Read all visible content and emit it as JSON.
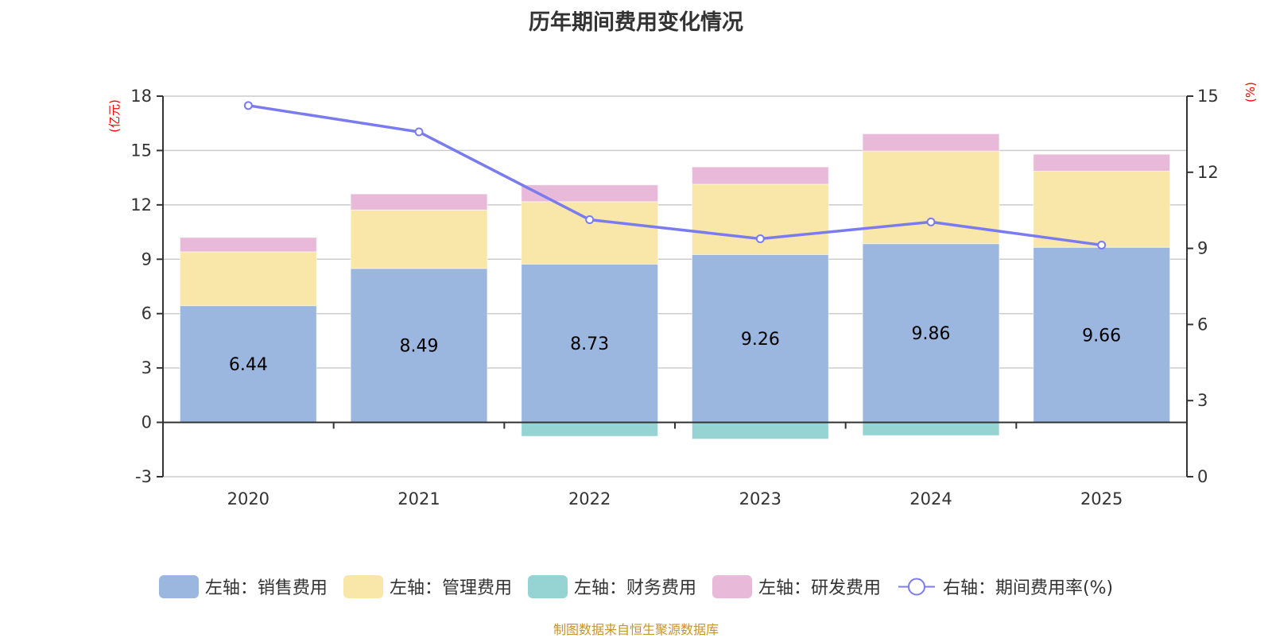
{
  "title": "历年期间费用变化情况",
  "footer": "制图数据来自恒生聚源数据库",
  "chart_data": {
    "type": "bar",
    "title": "历年期间费用变化情况",
    "categories": [
      "2020",
      "2021",
      "2022",
      "2023",
      "2024",
      "2025"
    ],
    "left_axis": {
      "unit_label": "(亿元)",
      "ylim": [
        -3,
        18
      ],
      "ticks": [
        -3,
        0,
        3,
        6,
        9,
        12,
        15,
        18
      ]
    },
    "right_axis": {
      "unit_label": "(%)",
      "ylim": [
        0,
        15
      ],
      "ticks": [
        0,
        3,
        6,
        9,
        12,
        15
      ]
    },
    "grid": true,
    "legend_position": "bottom",
    "series": [
      {
        "name": "左轴：销售费用",
        "type": "bar",
        "axis": "left",
        "color": "#9bb7e0",
        "values": [
          6.44,
          8.49,
          8.73,
          9.26,
          9.86,
          9.66
        ],
        "show_labels": true
      },
      {
        "name": "左轴：管理费用",
        "type": "bar",
        "axis": "left",
        "color": "#f8e7a9",
        "values": [
          2.97,
          3.23,
          3.45,
          3.88,
          5.11,
          4.2
        ],
        "show_labels": false
      },
      {
        "name": "左轴：财务费用",
        "type": "bar",
        "axis": "left",
        "color": "#96d4d4",
        "values": [
          0.0,
          0.0,
          -0.77,
          -0.92,
          -0.73,
          0.0
        ],
        "show_labels": false
      },
      {
        "name": "左轴：研发费用",
        "type": "bar",
        "axis": "left",
        "color": "#e8b9d8",
        "values": [
          0.79,
          0.88,
          0.92,
          0.95,
          0.95,
          0.93
        ],
        "show_labels": false
      },
      {
        "name": "右轴：期间费用率(%)",
        "type": "line",
        "axis": "right",
        "color": "#7b7bf0",
        "values": [
          14.63,
          13.59,
          10.13,
          9.38,
          10.04,
          9.13
        ]
      }
    ]
  }
}
